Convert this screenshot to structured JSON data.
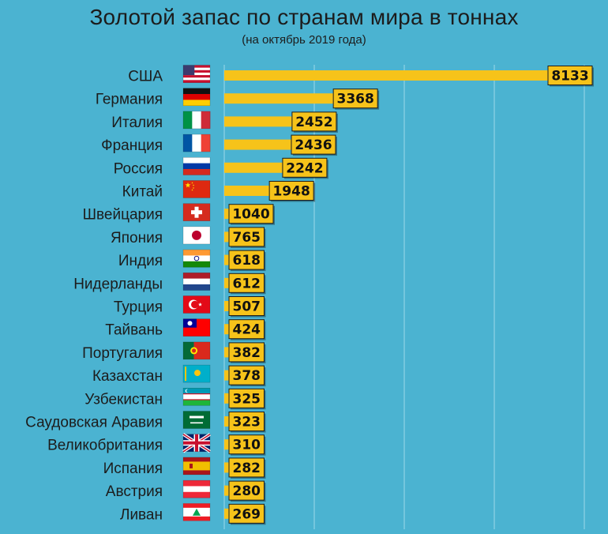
{
  "colors": {
    "background": "#4bb3d1",
    "bar": "#f6c31a",
    "label_box": "#f6c31a",
    "grid": "#8fd2e5",
    "text": "#1c1c1c"
  },
  "chart_data": {
    "type": "bar",
    "orientation": "horizontal",
    "title": "Золотой запас по странам мира в тоннах",
    "subtitle": "(на октябрь 2019 года)",
    "xlabel": "",
    "ylabel": "",
    "xlim": [
      0,
      8300
    ],
    "grid": true,
    "categories": [
      "США",
      "Германия",
      "Италия",
      "Франция",
      "Россия",
      "Китай",
      "Швейцария",
      "Япония",
      "Индия",
      "Нидерланды",
      "Турция",
      "Тайвань",
      "Португалия",
      "Казахстан",
      "Узбекистан",
      "Саудовская Аравия",
      "Великобритания",
      "Испания",
      "Австрия",
      "Ливан"
    ],
    "values": [
      8133,
      3368,
      2452,
      2436,
      2242,
      1948,
      1040,
      765,
      618,
      612,
      507,
      424,
      382,
      378,
      325,
      323,
      310,
      282,
      280,
      269
    ],
    "flags": [
      "us-flag-icon",
      "germany-flag-icon",
      "italy-flag-icon",
      "france-flag-icon",
      "russia-flag-icon",
      "china-flag-icon",
      "switzerland-flag-icon",
      "japan-flag-icon",
      "india-flag-icon",
      "netherlands-flag-icon",
      "turkey-flag-icon",
      "taiwan-flag-icon",
      "portugal-flag-icon",
      "kazakhstan-flag-icon",
      "uzbekistan-flag-icon",
      "saudi-arabia-flag-icon",
      "uk-flag-icon",
      "spain-flag-icon",
      "austria-flag-icon",
      "lebanon-flag-icon"
    ]
  }
}
